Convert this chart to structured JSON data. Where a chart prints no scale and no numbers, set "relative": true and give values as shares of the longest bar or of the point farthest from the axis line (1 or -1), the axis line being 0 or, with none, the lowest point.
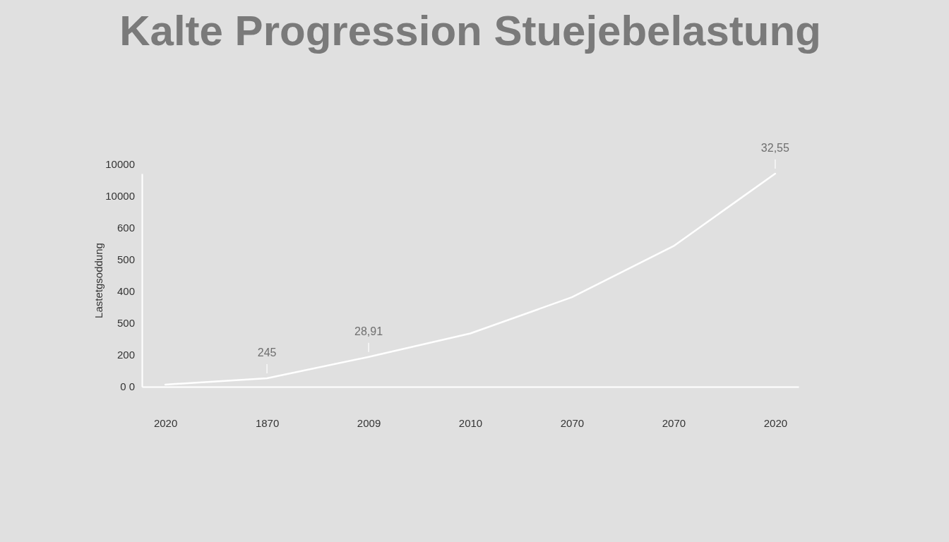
{
  "chart_data": {
    "type": "line",
    "title": "Kalte Progression Stuejebelastung",
    "ylabel": "Lastetgsoddung",
    "categories": [
      "2020",
      "1870",
      "2009",
      "2010",
      "2070",
      "2070",
      "2020"
    ],
    "relative": true,
    "series": [
      {
        "color": "#ffffff",
        "values": [
          0.01,
          0.04,
          0.14,
          0.25,
          0.42,
          0.66,
          1
        ]
      }
    ],
    "annotations": [
      {
        "text": "245",
        "x": "1870",
        "y": 0.04
      },
      {
        "text": "28,91",
        "x": "2009",
        "y": 0.14
      },
      "10000",
      "10000",
      "600",
      "500",
      "400",
      "500",
      "200",
      "0 0",
      "32,55"
    ]
  }
}
